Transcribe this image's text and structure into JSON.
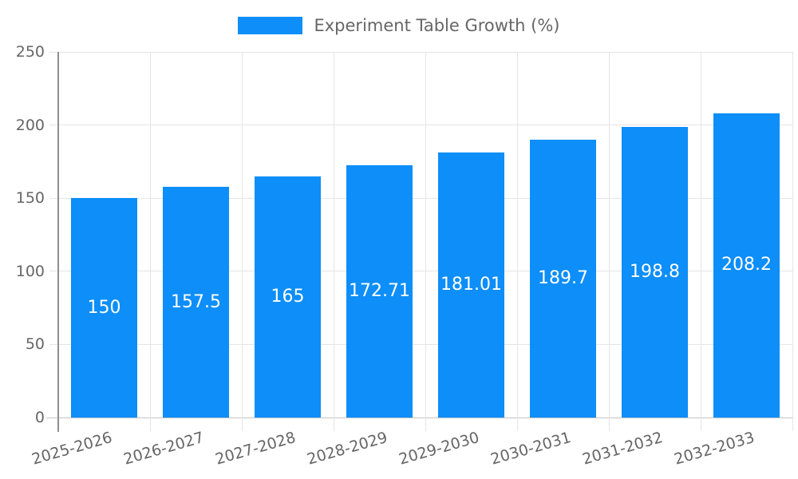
{
  "chart_data": {
    "type": "bar",
    "title": "",
    "legend": "Experiment Table Growth (%)",
    "legend_position": "top",
    "categories": [
      "2025-2026",
      "2026-2027",
      "2027-2028",
      "2028-2029",
      "2029-2030",
      "2030-2031",
      "2031-2032",
      "2032-2033"
    ],
    "series": [
      {
        "name": "Experiment Table Growth (%)",
        "values": [
          150,
          157.5,
          165,
          172.71,
          181.01,
          189.7,
          198.8,
          208.2
        ]
      }
    ],
    "value_labels": [
      "150",
      "157.5",
      "165",
      "172.71",
      "181.01",
      "189.7",
      "198.8",
      "208.2"
    ],
    "xlabel": "",
    "ylabel": "",
    "ylim": [
      0,
      250
    ],
    "yticks": [
      0,
      50,
      100,
      150,
      200,
      250
    ],
    "grid": true,
    "x_label_rotation_deg": -16,
    "colors": {
      "bar": "#0d8ef8",
      "axis_text": "#666666",
      "value_label_text": "#ffffff",
      "gridline": "#e5e5e5",
      "y_axis_line": "#8f8f8f",
      "x_baseline": "#c4c4c4"
    }
  }
}
